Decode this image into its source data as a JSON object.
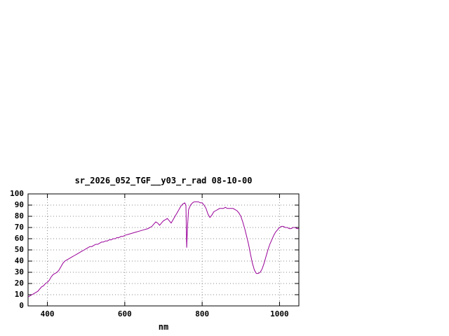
{
  "page": {
    "background": "#ffffff"
  },
  "chart_data": {
    "type": "line",
    "title": "sr_2026_052_TGF__y03_r_rad 08-10-00",
    "xlabel": "nm",
    "ylabel": "",
    "xlim": [
      350,
      1050
    ],
    "ylim": [
      0,
      100
    ],
    "xticks": [
      400,
      600,
      800,
      1000
    ],
    "yticks": [
      0,
      10,
      20,
      30,
      40,
      50,
      60,
      70,
      80,
      90,
      100
    ],
    "grid": true,
    "legend": "none",
    "line_color": "#990099",
    "series": [
      {
        "name": "sr_2026_052_TGF__y03_r_rad",
        "x": [
          350,
          355,
          360,
          365,
          370,
          375,
          380,
          385,
          390,
          395,
          400,
          405,
          410,
          415,
          420,
          425,
          430,
          435,
          440,
          445,
          450,
          455,
          460,
          465,
          470,
          475,
          480,
          485,
          490,
          495,
          500,
          505,
          510,
          515,
          520,
          525,
          530,
          535,
          540,
          545,
          550,
          555,
          560,
          565,
          570,
          575,
          580,
          585,
          590,
          595,
          600,
          610,
          620,
          630,
          640,
          650,
          660,
          670,
          675,
          680,
          685,
          690,
          695,
          700,
          705,
          710,
          715,
          720,
          725,
          730,
          735,
          740,
          745,
          750,
          755,
          758,
          760,
          762,
          765,
          770,
          775,
          780,
          785,
          790,
          795,
          800,
          805,
          810,
          815,
          820,
          825,
          830,
          835,
          840,
          845,
          850,
          855,
          860,
          865,
          870,
          875,
          880,
          885,
          890,
          895,
          900,
          905,
          910,
          915,
          920,
          925,
          930,
          935,
          940,
          945,
          950,
          955,
          960,
          965,
          970,
          975,
          980,
          985,
          990,
          995,
          1000,
          1005,
          1010,
          1015,
          1020,
          1025,
          1030,
          1035,
          1040,
          1045,
          1050
        ],
        "y": [
          8,
          9,
          10,
          11,
          12,
          13,
          15,
          17,
          18,
          20,
          21,
          23,
          26,
          28,
          29,
          30,
          32,
          35,
          38,
          40,
          41,
          42,
          43,
          44,
          45,
          46,
          47,
          48,
          49,
          50,
          51,
          52,
          53,
          53,
          54,
          55,
          55,
          56,
          57,
          57,
          58,
          58,
          59,
          59,
          60,
          60,
          61,
          61,
          62,
          62,
          63,
          64,
          65,
          66,
          67,
          68,
          69,
          71,
          73,
          75,
          74,
          72,
          74,
          76,
          77,
          78,
          76,
          74,
          77,
          80,
          83,
          86,
          89,
          91,
          92,
          90,
          52,
          70,
          86,
          90,
          92,
          93,
          93,
          93,
          92,
          92,
          90,
          87,
          82,
          79,
          81,
          84,
          85,
          86,
          87,
          87,
          87,
          88,
          87,
          87,
          87,
          87,
          86,
          85,
          83,
          80,
          75,
          69,
          62,
          55,
          46,
          38,
          32,
          29,
          29,
          30,
          33,
          38,
          44,
          50,
          55,
          59,
          63,
          66,
          68,
          70,
          71,
          71,
          70,
          70,
          69,
          69,
          70,
          70,
          69,
          69
        ]
      }
    ]
  }
}
